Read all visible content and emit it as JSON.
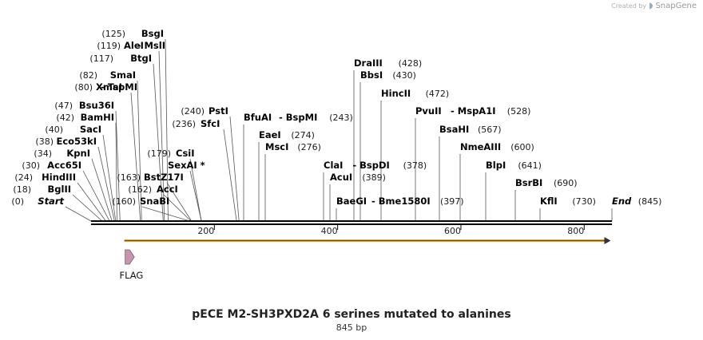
{
  "credit": {
    "created_by": "Created by",
    "brand": "SnapGene"
  },
  "map": {
    "title": "pECE M2-SH3PXD2A 6 serines mutated to alanines",
    "length_label": "845 bp",
    "total_bp": 845,
    "backbone_color": "#000000",
    "orf_color": "#f0a020",
    "feature_color": "#c994b0",
    "ticks": [
      200,
      400,
      600,
      800
    ],
    "features": [
      {
        "name": "FLAG",
        "start": 54,
        "end": 78,
        "type": "arrow"
      }
    ],
    "orf": {
      "start": 54,
      "end": 843
    },
    "left_sites": [
      {
        "pos_label": "(0)",
        "name": "Start",
        "italic": true,
        "bp": 0
      },
      {
        "pos_label": "(18)",
        "name": "BglII",
        "bp": 18
      },
      {
        "pos_label": "(24)",
        "name": "HindIII",
        "bp": 24
      },
      {
        "pos_label": "(30)",
        "name": "Acc65I",
        "bp": 30
      },
      {
        "pos_label": "(34)",
        "name": "KpnI",
        "bp": 34
      },
      {
        "pos_label": "(38)",
        "name": "Eco53kI",
        "bp": 38
      },
      {
        "pos_label": "(40)",
        "name": "SacI",
        "bp": 40
      },
      {
        "pos_label": "(42)",
        "name": "BamHI",
        "bp": 42
      },
      {
        "pos_label": "(47)",
        "name": "Bsu36I",
        "bp": 47
      },
      {
        "pos_label": "(80)",
        "name": "XmaI",
        "name2": "TspMI",
        "bp": 80
      },
      {
        "pos_label": "(82)",
        "name": "SmaI",
        "bp": 82
      },
      {
        "pos_label": "(117)",
        "name": "BtgI",
        "bp": 117
      },
      {
        "pos_label": "(119)",
        "name": "AleI",
        "name2": "MslI",
        "bp": 119
      },
      {
        "pos_label": "(125)",
        "name": "BsgI",
        "bp": 125
      }
    ],
    "mid_sites": [
      {
        "pos_label": "(160)",
        "name": "SnaBI",
        "bp": 160
      },
      {
        "pos_label": "(162)",
        "name": "AccI",
        "bp": 162
      },
      {
        "pos_label": "(163)",
        "name": "BstZ17I",
        "bp": 163
      },
      {
        "pos_label": "",
        "name": "SexAI *",
        "bp": 179
      },
      {
        "pos_label": "(179)",
        "name": "CsiI",
        "bp": 179
      },
      {
        "pos_label": "(236)",
        "name": "SfcI",
        "bp": 236
      },
      {
        "pos_label": "(240)",
        "name": "PstI",
        "bp": 240
      }
    ],
    "right_sites": [
      {
        "name": "BfuAI",
        "name2": "BspMI",
        "pos_label": "(243)",
        "bp": 243
      },
      {
        "name": "EaeI",
        "pos_label": "(274)",
        "bp": 274
      },
      {
        "name": "MscI",
        "pos_label": "(276)",
        "bp": 276
      },
      {
        "name": "ClaI",
        "name2": "BspDI",
        "pos_label": "(378)",
        "bp": 378
      },
      {
        "name": "AcuI",
        "pos_label": "(389)",
        "bp": 389
      },
      {
        "name": "BaeGI",
        "name2": "Bme1580I",
        "pos_label": "(397)",
        "bp": 397
      },
      {
        "name": "DraIII",
        "pos_label": "(428)",
        "bp": 428
      },
      {
        "name": "BbsI",
        "pos_label": "(430)",
        "bp": 430
      },
      {
        "name": "HincII",
        "pos_label": "(472)",
        "bp": 472
      },
      {
        "name": "PvuII",
        "name2": "MspA1I",
        "pos_label": "(528)",
        "bp": 528
      },
      {
        "name": "BsaHI",
        "pos_label": "(567)",
        "bp": 567
      },
      {
        "name": "NmeAIII",
        "pos_label": "(600)",
        "bp": 600
      },
      {
        "name": "BlpI",
        "pos_label": "(641)",
        "bp": 641
      },
      {
        "name": "BsrBI",
        "pos_label": "(690)",
        "bp": 690
      },
      {
        "name": "KflI",
        "pos_label": "(730)",
        "bp": 730
      },
      {
        "name": "End",
        "italic": true,
        "pos_label": "(845)",
        "bp": 845
      }
    ]
  }
}
